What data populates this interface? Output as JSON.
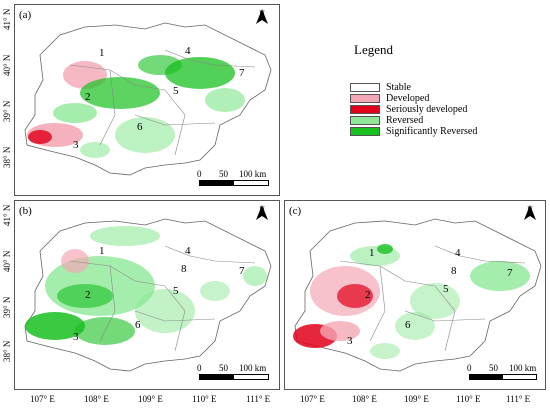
{
  "legend": {
    "title": "Legend",
    "items": [
      {
        "label": "Stable",
        "color": "#ffffff"
      },
      {
        "label": "Developed",
        "color": "#f4a8b5"
      },
      {
        "label": "Seriously developed",
        "color": "#e0001a"
      },
      {
        "label": "Reversed",
        "color": "#8fe898"
      },
      {
        "label": "Significantly Reversed",
        "color": "#18c020"
      }
    ]
  },
  "panels": [
    {
      "label": "(a)",
      "regions": [
        "1",
        "2",
        "3",
        "4",
        "5",
        "6",
        "7"
      ]
    },
    {
      "label": "(b)",
      "regions": [
        "1",
        "2",
        "3",
        "4",
        "5",
        "6",
        "7",
        "8"
      ]
    },
    {
      "label": "(c)",
      "regions": [
        "1",
        "2",
        "3",
        "4",
        "5",
        "6",
        "7",
        "8"
      ]
    }
  ],
  "north_label": "N",
  "scale_bar": {
    "ticks": [
      "0",
      "50",
      "100 km"
    ]
  },
  "y_ticks": [
    "41° N",
    "40° N",
    "39° N",
    "38° N"
  ],
  "x_ticks": [
    "107° E",
    "108° E",
    "109° E",
    "110° E",
    "111° E"
  ]
}
